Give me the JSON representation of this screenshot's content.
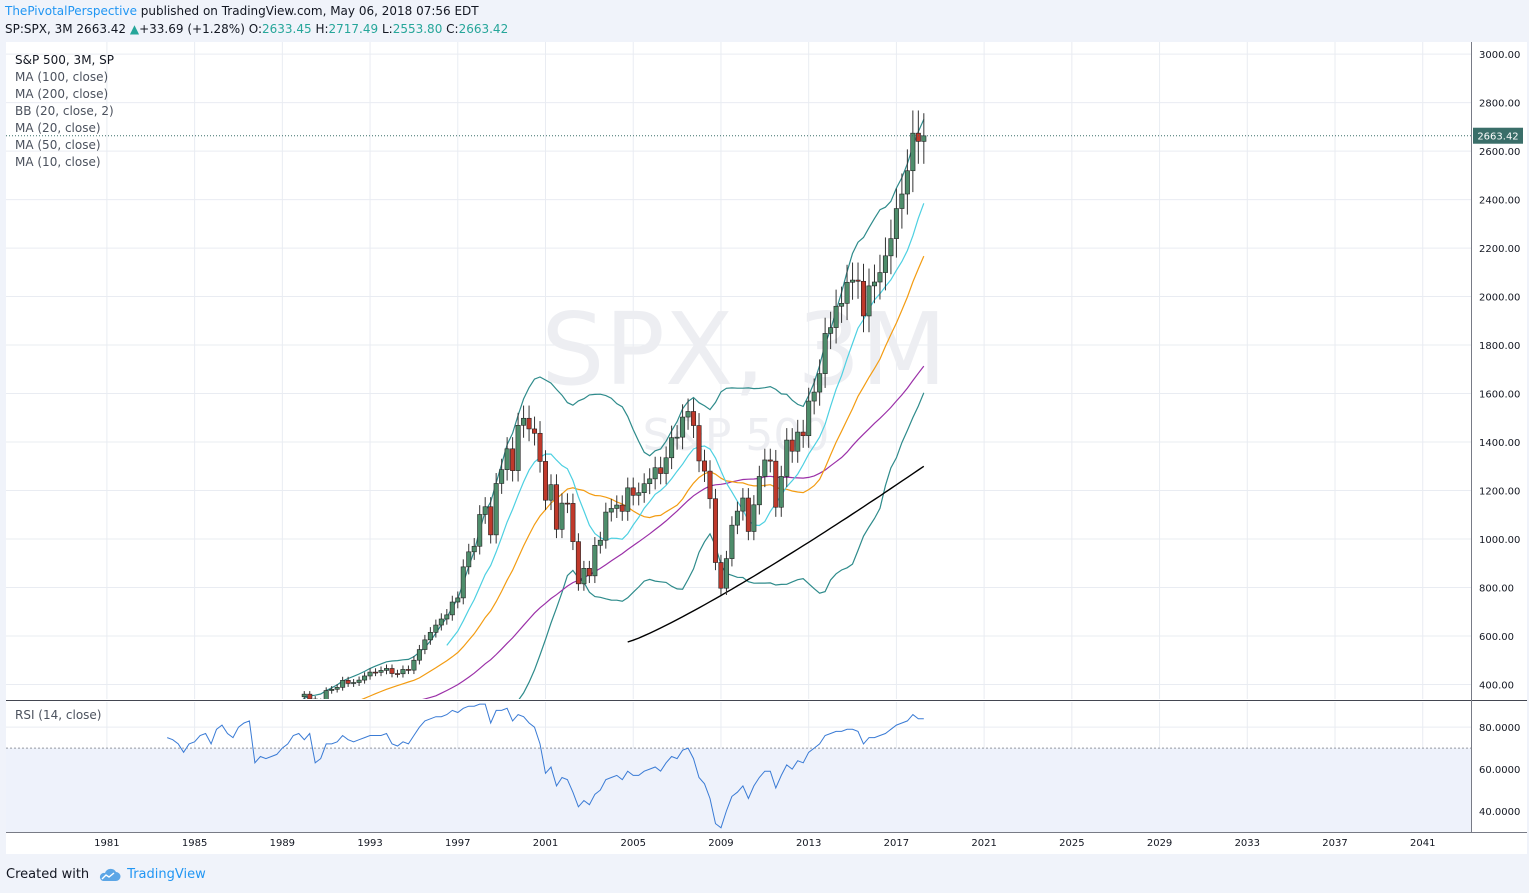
{
  "header": {
    "author": "ThePivotalPerspective",
    "published": " published on TradingView.com, May 06, 2018 07:56 EDT",
    "symbol": "SP:SPX, 3M",
    "last": "2663.42",
    "arrow": "▲",
    "change": "+33.69 (+1.28%)",
    "o_label": "O:",
    "o_val": "2633.45",
    "h_label": "H:",
    "h_val": "2717.49",
    "l_label": "L:",
    "l_val": "2553.80",
    "c_label": "C:",
    "c_val": "2663.42"
  },
  "legend": {
    "main": "S&P 500, 3M, SP",
    "items": [
      "MA (100, close)",
      "MA (200, close)",
      "BB (20, close, 2)",
      "MA (20, close)",
      "MA (50, close)",
      "MA (10, close)"
    ]
  },
  "watermark": {
    "big": "SPX, 3M",
    "small": "S&P 500"
  },
  "rsi_label": "RSI (14, close)",
  "price_badge": "2663.42",
  "footer": {
    "created": "Created with",
    "brand": "TradingView"
  },
  "colors": {
    "up": "#4e8d6b",
    "down": "#c0392b",
    "ma10": "#4dd0e1",
    "ma20": "#f39c12",
    "ma50": "#9b30a8",
    "ma100": "#000000",
    "bb": "#2e8b8b",
    "rsi": "#3a7bd5",
    "rsi_band": "#eef2fb",
    "badge": "#3a6e69"
  },
  "chart_data": {
    "type": "candlestick",
    "title": "S&P 500, 3M, SP",
    "y_ticks": [
      "400.00",
      "600.00",
      "800.00",
      "1000.00",
      "1200.00",
      "1400.00",
      "1600.00",
      "1800.00",
      "2000.00",
      "2200.00",
      "2400.00",
      "2600.00",
      "2800.00",
      "3000.00"
    ],
    "y_tick_values": [
      400,
      600,
      800,
      1000,
      1200,
      1400,
      1600,
      1800,
      2000,
      2200,
      2400,
      2600,
      2800,
      3000
    ],
    "ylim": [
      340,
      3050
    ],
    "x_ticks": [
      "1981",
      "1985",
      "1989",
      "1993",
      "1997",
      "2001",
      "2005",
      "2009",
      "2013",
      "2017",
      "2021",
      "2025",
      "2029",
      "2033",
      "2037",
      "2041"
    ],
    "x_tick_values": [
      1981,
      1985,
      1989,
      1993,
      1997,
      2001,
      2005,
      2009,
      2013,
      2017,
      2021,
      2025,
      2029,
      2033,
      2037,
      2041
    ],
    "xlim": [
      1976.4,
      2043.2
    ],
    "last_price": 2663.42,
    "closes": [
      [
        1990.0,
        360
      ],
      [
        1990.25,
        340
      ],
      [
        1990.5,
        310
      ],
      [
        1990.75,
        330
      ],
      [
        1991.0,
        375
      ],
      [
        1991.25,
        380
      ],
      [
        1991.5,
        388
      ],
      [
        1991.75,
        417
      ],
      [
        1992.0,
        404
      ],
      [
        1992.25,
        408
      ],
      [
        1992.5,
        418
      ],
      [
        1992.75,
        435
      ],
      [
        1993.0,
        451
      ],
      [
        1993.25,
        450
      ],
      [
        1993.5,
        458
      ],
      [
        1993.75,
        466
      ],
      [
        1994.0,
        445
      ],
      [
        1994.25,
        444
      ],
      [
        1994.5,
        462
      ],
      [
        1994.75,
        459
      ],
      [
        1995.0,
        500
      ],
      [
        1995.25,
        544
      ],
      [
        1995.5,
        584
      ],
      [
        1995.75,
        615
      ],
      [
        1996.0,
        645
      ],
      [
        1996.25,
        670
      ],
      [
        1996.5,
        687
      ],
      [
        1996.75,
        740
      ],
      [
        1997.0,
        757
      ],
      [
        1997.25,
        885
      ],
      [
        1997.5,
        947
      ],
      [
        1997.75,
        970
      ],
      [
        1998.0,
        1101
      ],
      [
        1998.25,
        1133
      ],
      [
        1998.5,
        1017
      ],
      [
        1998.75,
        1229
      ],
      [
        1999.0,
        1286
      ],
      [
        1999.25,
        1372
      ],
      [
        1999.5,
        1282
      ],
      [
        1999.75,
        1469
      ],
      [
        2000.0,
        1498
      ],
      [
        2000.25,
        1454
      ],
      [
        2000.5,
        1436
      ],
      [
        2000.75,
        1320
      ],
      [
        2001.0,
        1160
      ],
      [
        2001.25,
        1224
      ],
      [
        2001.5,
        1040
      ],
      [
        2001.75,
        1148
      ],
      [
        2002.0,
        1147
      ],
      [
        2002.25,
        989
      ],
      [
        2002.5,
        815
      ],
      [
        2002.75,
        879
      ],
      [
        2003.0,
        848
      ],
      [
        2003.25,
        974
      ],
      [
        2003.5,
        995
      ],
      [
        2003.75,
        1111
      ],
      [
        2004.0,
        1126
      ],
      [
        2004.25,
        1140
      ],
      [
        2004.5,
        1114
      ],
      [
        2004.75,
        1211
      ],
      [
        2005.0,
        1180
      ],
      [
        2005.25,
        1191
      ],
      [
        2005.5,
        1228
      ],
      [
        2005.75,
        1248
      ],
      [
        2006.0,
        1294
      ],
      [
        2006.25,
        1270
      ],
      [
        2006.5,
        1335
      ],
      [
        2006.75,
        1418
      ],
      [
        2007.0,
        1420
      ],
      [
        2007.25,
        1503
      ],
      [
        2007.5,
        1526
      ],
      [
        2007.75,
        1468
      ],
      [
        2008.0,
        1322
      ],
      [
        2008.25,
        1280
      ],
      [
        2008.5,
        1166
      ],
      [
        2008.75,
        903
      ],
      [
        2009.0,
        797
      ],
      [
        2009.25,
        919
      ],
      [
        2009.5,
        1057
      ],
      [
        2009.75,
        1115
      ],
      [
        2010.0,
        1169
      ],
      [
        2010.25,
        1031
      ],
      [
        2010.5,
        1141
      ],
      [
        2010.75,
        1258
      ],
      [
        2011.0,
        1326
      ],
      [
        2011.25,
        1321
      ],
      [
        2011.5,
        1131
      ],
      [
        2011.75,
        1258
      ],
      [
        2012.0,
        1408
      ],
      [
        2012.25,
        1362
      ],
      [
        2012.5,
        1441
      ],
      [
        2012.75,
        1426
      ],
      [
        2013.0,
        1569
      ],
      [
        2013.25,
        1606
      ],
      [
        2013.5,
        1682
      ],
      [
        2013.75,
        1848
      ],
      [
        2014.0,
        1872
      ],
      [
        2014.25,
        1960
      ],
      [
        2014.5,
        1972
      ],
      [
        2014.75,
        2059
      ],
      [
        2015.0,
        2068
      ],
      [
        2015.25,
        2063
      ],
      [
        2015.5,
        1920
      ],
      [
        2015.75,
        2044
      ],
      [
        2016.0,
        2060
      ],
      [
        2016.25,
        2099
      ],
      [
        2016.5,
        2168
      ],
      [
        2016.75,
        2239
      ],
      [
        2017.0,
        2363
      ],
      [
        2017.25,
        2423
      ],
      [
        2017.5,
        2519
      ],
      [
        2017.75,
        2674
      ],
      [
        2018.0,
        2640
      ],
      [
        2018.25,
        2663
      ]
    ],
    "ma10_start": 1996.5,
    "ma20_start": 1989.5,
    "ma50_start": 1988.5,
    "ma100_start": 2004.75,
    "bb_start": 1989.5,
    "ma100_range": [
      575,
      1300
    ],
    "rsi_ticks": [
      "40.0000",
      "60.0000",
      "80.0000"
    ],
    "rsi_tick_values": [
      40,
      60,
      80
    ],
    "rsi_ylim": [
      30,
      92
    ],
    "rsi_band": [
      30,
      70
    ],
    "rsi_values": [
      [
        1983.75,
        75
      ],
      [
        1984.0,
        74
      ],
      [
        1984.25,
        72
      ],
      [
        1984.5,
        68
      ],
      [
        1984.75,
        72
      ],
      [
        1985.0,
        73
      ],
      [
        1985.25,
        76
      ],
      [
        1985.5,
        77
      ],
      [
        1985.75,
        72
      ],
      [
        1986.0,
        79
      ],
      [
        1986.25,
        81
      ],
      [
        1986.5,
        77
      ],
      [
        1986.75,
        75
      ],
      [
        1987.0,
        80
      ],
      [
        1987.25,
        82
      ],
      [
        1987.5,
        83
      ],
      [
        1987.75,
        63
      ],
      [
        1988.0,
        66
      ],
      [
        1988.25,
        65
      ],
      [
        1988.5,
        66
      ],
      [
        1988.75,
        67
      ],
      [
        1989.0,
        70
      ],
      [
        1989.25,
        72
      ],
      [
        1989.5,
        76
      ],
      [
        1989.75,
        77
      ],
      [
        1990.0,
        74
      ],
      [
        1990.25,
        77
      ],
      [
        1990.5,
        63
      ],
      [
        1990.75,
        65
      ],
      [
        1991.0,
        72
      ],
      [
        1991.25,
        72
      ],
      [
        1991.5,
        73
      ],
      [
        1991.75,
        76
      ],
      [
        1992.0,
        74
      ],
      [
        1992.25,
        73
      ],
      [
        1992.5,
        74
      ],
      [
        1992.75,
        75
      ],
      [
        1993.0,
        76
      ],
      [
        1993.25,
        76
      ],
      [
        1993.5,
        76
      ],
      [
        1993.75,
        77
      ],
      [
        1994.0,
        72
      ],
      [
        1994.25,
        71
      ],
      [
        1994.5,
        73
      ],
      [
        1994.75,
        72
      ],
      [
        1995.0,
        76
      ],
      [
        1995.25,
        80
      ],
      [
        1995.5,
        83
      ],
      [
        1995.75,
        84
      ],
      [
        1996.0,
        85
      ],
      [
        1996.25,
        85
      ],
      [
        1996.5,
        86
      ],
      [
        1996.75,
        88
      ],
      [
        1997.0,
        87
      ],
      [
        1997.25,
        89
      ],
      [
        1997.5,
        90
      ],
      [
        1997.75,
        90
      ],
      [
        1998.0,
        91
      ],
      [
        1998.25,
        91
      ],
      [
        1998.5,
        82
      ],
      [
        1998.75,
        88
      ],
      [
        1999.0,
        88
      ],
      [
        1999.25,
        89
      ],
      [
        1999.5,
        83
      ],
      [
        1999.75,
        86
      ],
      [
        2000.0,
        85
      ],
      [
        2000.25,
        82
      ],
      [
        2000.5,
        80
      ],
      [
        2000.75,
        72
      ],
      [
        2001.0,
        58
      ],
      [
        2001.25,
        61
      ],
      [
        2001.5,
        52
      ],
      [
        2001.75,
        56
      ],
      [
        2002.0,
        55
      ],
      [
        2002.25,
        49
      ],
      [
        2002.5,
        42
      ],
      [
        2002.75,
        45
      ],
      [
        2003.0,
        43
      ],
      [
        2003.25,
        48
      ],
      [
        2003.5,
        50
      ],
      [
        2003.75,
        55
      ],
      [
        2004.0,
        56
      ],
      [
        2004.25,
        57
      ],
      [
        2004.5,
        55
      ],
      [
        2004.75,
        59
      ],
      [
        2005.0,
        57
      ],
      [
        2005.25,
        57
      ],
      [
        2005.5,
        59
      ],
      [
        2005.75,
        60
      ],
      [
        2006.0,
        61
      ],
      [
        2006.25,
        59
      ],
      [
        2006.5,
        63
      ],
      [
        2006.75,
        66
      ],
      [
        2007.0,
        65
      ],
      [
        2007.25,
        69
      ],
      [
        2007.5,
        70
      ],
      [
        2007.75,
        65
      ],
      [
        2008.0,
        56
      ],
      [
        2008.25,
        53
      ],
      [
        2008.5,
        46
      ],
      [
        2008.75,
        34
      ],
      [
        2009.0,
        32
      ],
      [
        2009.25,
        40
      ],
      [
        2009.5,
        47
      ],
      [
        2009.75,
        49
      ],
      [
        2010.0,
        52
      ],
      [
        2010.25,
        46
      ],
      [
        2010.5,
        52
      ],
      [
        2010.75,
        56
      ],
      [
        2011.0,
        59
      ],
      [
        2011.25,
        59
      ],
      [
        2011.5,
        51
      ],
      [
        2011.75,
        57
      ],
      [
        2012.0,
        62
      ],
      [
        2012.25,
        60
      ],
      [
        2012.5,
        64
      ],
      [
        2012.75,
        63
      ],
      [
        2013.0,
        68
      ],
      [
        2013.25,
        70
      ],
      [
        2013.5,
        72
      ],
      [
        2013.75,
        76
      ],
      [
        2014.0,
        77
      ],
      [
        2014.25,
        78
      ],
      [
        2014.5,
        78
      ],
      [
        2014.75,
        79
      ],
      [
        2015.0,
        79
      ],
      [
        2015.25,
        78
      ],
      [
        2015.5,
        72
      ],
      [
        2015.75,
        75
      ],
      [
        2016.0,
        75
      ],
      [
        2016.25,
        76
      ],
      [
        2016.5,
        77
      ],
      [
        2016.75,
        79
      ],
      [
        2017.0,
        81
      ],
      [
        2017.25,
        82
      ],
      [
        2017.5,
        83
      ],
      [
        2017.75,
        86
      ],
      [
        2018.0,
        84
      ],
      [
        2018.25,
        84
      ]
    ]
  }
}
